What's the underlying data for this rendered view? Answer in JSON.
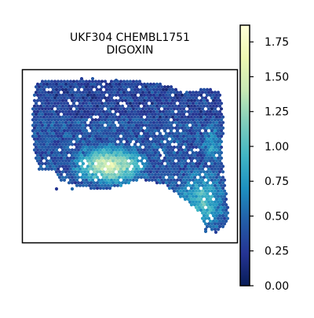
{
  "chart_data": {
    "type": "scatter",
    "title_line1": "UKF304 CHEMBL1751",
    "title_line2": "DIGOXIN",
    "colorbar": {
      "label": "",
      "vmin": 0.0,
      "vmax": 1.87,
      "ticks": [
        0.0,
        0.25,
        0.5,
        0.75,
        1.0,
        1.25,
        1.5,
        1.75
      ],
      "tick_labels": [
        "0.00",
        "0.25",
        "0.50",
        "0.75",
        "1.00",
        "1.25",
        "1.50",
        "1.75"
      ],
      "colormap": "YlGnBu",
      "colormap_stops": [
        "#081d58",
        "#253494",
        "#225ea8",
        "#1d91c0",
        "#41b6c4",
        "#7fcdbb",
        "#c7e9b4",
        "#edf8b1",
        "#ffffd9"
      ]
    },
    "axes": {
      "xticks": [],
      "yticks": [],
      "frame": true
    },
    "regions": [
      {
        "name": "upper band",
        "value_mean": 0.35
      },
      {
        "name": "center bright cluster",
        "value_mean": 1.15
      },
      {
        "name": "lower right lobe",
        "value_mean": 0.75
      }
    ]
  }
}
